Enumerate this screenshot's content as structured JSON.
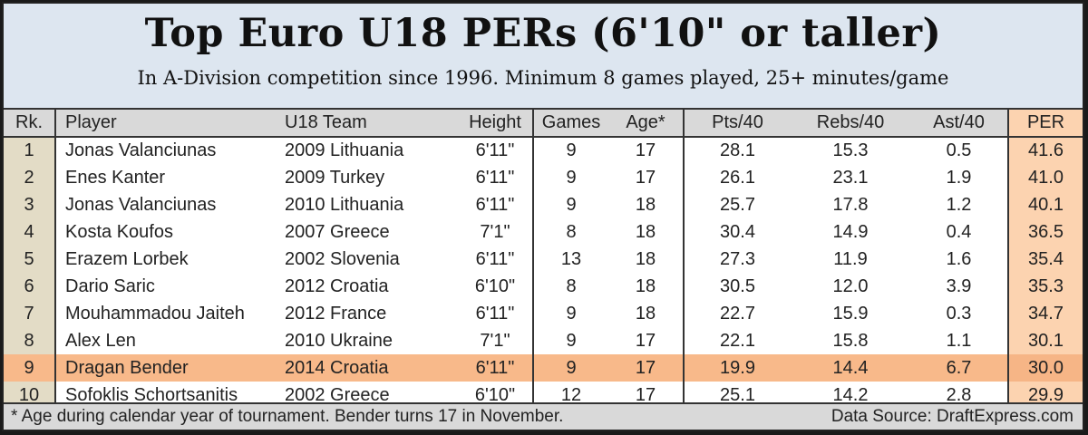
{
  "header": {
    "title": "Top Euro U18 PERs (6'10\" or taller)",
    "subtitle": "In A-Division competition since 1996. Minimum 8 games played, 25+ minutes/game"
  },
  "colors": {
    "title_bg": "#dde6f0",
    "header_row_bg": "#d9d9d9",
    "rank_col_bg": "#e3dcc6",
    "per_col_bg": "#fcd3b0",
    "highlight_row_bg": "#f8b98a"
  },
  "table": {
    "columns": [
      "Rk.",
      "Player",
      "U18 Team",
      "Height",
      "Games",
      "Age*",
      "Pts/40",
      "Rebs/40",
      "Ast/40",
      "PER"
    ],
    "rows": [
      {
        "rk": "1",
        "player": "Jonas Valanciunas",
        "team": "2009 Lithuania",
        "height": "6'11\"",
        "games": "9",
        "age": "17",
        "pts": "28.1",
        "rebs": "15.3",
        "ast": "0.5",
        "per": "41.6"
      },
      {
        "rk": "2",
        "player": "Enes Kanter",
        "team": "2009 Turkey",
        "height": "6'11\"",
        "games": "9",
        "age": "17",
        "pts": "26.1",
        "rebs": "23.1",
        "ast": "1.9",
        "per": "41.0"
      },
      {
        "rk": "3",
        "player": "Jonas Valanciunas",
        "team": "2010 Lithuania",
        "height": "6'11\"",
        "games": "9",
        "age": "18",
        "pts": "25.7",
        "rebs": "17.8",
        "ast": "1.2",
        "per": "40.1"
      },
      {
        "rk": "4",
        "player": "Kosta Koufos",
        "team": "2007 Greece",
        "height": "7'1\"",
        "games": "8",
        "age": "18",
        "pts": "30.4",
        "rebs": "14.9",
        "ast": "0.4",
        "per": "36.5"
      },
      {
        "rk": "5",
        "player": "Erazem Lorbek",
        "team": "2002 Slovenia",
        "height": "6'11\"",
        "games": "13",
        "age": "18",
        "pts": "27.3",
        "rebs": "11.9",
        "ast": "1.6",
        "per": "35.4"
      },
      {
        "rk": "6",
        "player": "Dario Saric",
        "team": "2012 Croatia",
        "height": "6'10\"",
        "games": "8",
        "age": "18",
        "pts": "30.5",
        "rebs": "12.0",
        "ast": "3.9",
        "per": "35.3"
      },
      {
        "rk": "7",
        "player": "Mouhammadou Jaiteh",
        "team": "2012 France",
        "height": "6'11\"",
        "games": "9",
        "age": "18",
        "pts": "22.7",
        "rebs": "15.9",
        "ast": "0.3",
        "per": "34.7"
      },
      {
        "rk": "8",
        "player": "Alex Len",
        "team": "2010 Ukraine",
        "height": "7'1\"",
        "games": "9",
        "age": "17",
        "pts": "22.1",
        "rebs": "15.8",
        "ast": "1.1",
        "per": "30.1"
      },
      {
        "rk": "9",
        "player": "Dragan Bender",
        "team": "2014 Croatia",
        "height": "6'11\"",
        "games": "9",
        "age": "17",
        "pts": "19.9",
        "rebs": "14.4",
        "ast": "6.7",
        "per": "30.0"
      },
      {
        "rk": "10",
        "player": "Sofoklis Schortsanitis",
        "team": "2002 Greece",
        "height": "6'10\"",
        "games": "12",
        "age": "17",
        "pts": "25.1",
        "rebs": "14.2",
        "ast": "2.8",
        "per": "29.9"
      }
    ],
    "highlighted_row_index": 8
  },
  "footer": {
    "note": "* Age during calendar year of tournament. Bender turns 17 in November.",
    "source": "Data Source: DraftExpress.com"
  },
  "chart_data": {
    "type": "table",
    "title": "Top Euro U18 PERs (6'10\" or taller)",
    "subtitle": "In A-Division competition since 1996. Minimum 8 games played, 25+ minutes/game",
    "columns": [
      "Rk.",
      "Player",
      "U18 Team",
      "Height",
      "Games",
      "Age*",
      "Pts/40",
      "Rebs/40",
      "Ast/40",
      "PER"
    ],
    "rows": [
      [
        1,
        "Jonas Valanciunas",
        "2009 Lithuania",
        "6'11\"",
        9,
        17,
        28.1,
        15.3,
        0.5,
        41.6
      ],
      [
        2,
        "Enes Kanter",
        "2009 Turkey",
        "6'11\"",
        9,
        17,
        26.1,
        23.1,
        1.9,
        41.0
      ],
      [
        3,
        "Jonas Valanciunas",
        "2010 Lithuania",
        "6'11\"",
        9,
        18,
        25.7,
        17.8,
        1.2,
        40.1
      ],
      [
        4,
        "Kosta Koufos",
        "2007 Greece",
        "7'1\"",
        8,
        18,
        30.4,
        14.9,
        0.4,
        36.5
      ],
      [
        5,
        "Erazem Lorbek",
        "2002 Slovenia",
        "6'11\"",
        13,
        18,
        27.3,
        11.9,
        1.6,
        35.4
      ],
      [
        6,
        "Dario Saric",
        "2012 Croatia",
        "6'10\"",
        8,
        18,
        30.5,
        12.0,
        3.9,
        35.3
      ],
      [
        7,
        "Mouhammadou Jaiteh",
        "2012 France",
        "6'11\"",
        9,
        18,
        22.7,
        15.9,
        0.3,
        34.7
      ],
      [
        8,
        "Alex Len",
        "2010 Ukraine",
        "7'1\"",
        9,
        17,
        22.1,
        15.8,
        1.1,
        30.1
      ],
      [
        9,
        "Dragan Bender",
        "2014 Croatia",
        "6'11\"",
        9,
        17,
        19.9,
        14.4,
        6.7,
        30.0
      ],
      [
        10,
        "Sofoklis Schortsanitis",
        "2002 Greece",
        "6'10\"",
        12,
        17,
        25.1,
        14.2,
        2.8,
        29.9
      ]
    ],
    "highlighted_row": "Dragan Bender",
    "annotations": [
      "* Age during calendar year of tournament. Bender turns 17 in November.",
      "Data Source: DraftExpress.com"
    ]
  }
}
